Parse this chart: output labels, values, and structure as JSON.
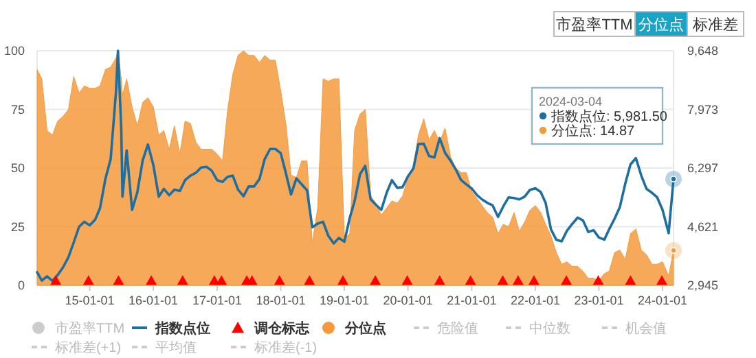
{
  "chart_data": {
    "type": "line",
    "annotations": [
      "市盈率TTM",
      "分位点",
      "标准差",
      "2024-03-04",
      "指数点位: 5,981.50",
      "分位点: 14.87"
    ],
    "x": [
      "2014-03-05",
      "2014-04",
      "2014-05",
      "2014-06",
      "2014-07",
      "2014-08",
      "2014-09",
      "2014-10",
      "2014-11",
      "2014-12",
      "2015-01",
      "2015-02",
      "2015-03",
      "2015-04",
      "2015-05",
      "2015-06",
      "2015-06-12",
      "2015-07",
      "2015-07-08",
      "2015-08",
      "2015-09",
      "2015-10",
      "2015-11",
      "2015-12",
      "2016-01",
      "2016-02",
      "2016-03",
      "2016-04",
      "2016-05",
      "2016-06",
      "2016-07",
      "2016-08",
      "2016-09",
      "2016-10",
      "2016-11",
      "2016-12",
      "2017-01",
      "2017-02",
      "2017-03",
      "2017-04",
      "2017-05",
      "2017-06",
      "2017-07",
      "2017-08",
      "2017-09",
      "2017-10",
      "2017-11",
      "2017-12",
      "2018-01",
      "2018-02",
      "2018-03",
      "2018-04",
      "2018-05",
      "2018-06",
      "2018-07",
      "2018-08",
      "2018-09",
      "2018-10",
      "2018-11",
      "2018-12",
      "2019-01",
      "2019-02",
      "2019-03",
      "2019-04",
      "2019-05",
      "2019-06",
      "2019-07",
      "2019-08",
      "2019-09",
      "2019-10",
      "2019-11",
      "2019-12",
      "2020-01",
      "2020-02",
      "2020-03",
      "2020-04",
      "2020-05",
      "2020-06",
      "2020-07",
      "2020-08",
      "2020-09",
      "2020-10",
      "2020-11",
      "2020-12",
      "2021-01",
      "2021-02",
      "2021-03",
      "2021-04",
      "2021-05",
      "2021-06",
      "2021-07",
      "2021-08",
      "2021-09",
      "2021-10",
      "2021-11",
      "2021-12",
      "2022-01",
      "2022-02",
      "2022-03",
      "2022-04",
      "2022-05",
      "2022-06",
      "2022-07",
      "2022-08",
      "2022-09",
      "2022-10",
      "2022-11",
      "2022-12",
      "2023-01",
      "2023-02",
      "2023-03",
      "2023-04",
      "2023-05",
      "2023-06",
      "2023-07",
      "2023-08",
      "2023-09",
      "2023-10",
      "2023-11",
      "2023-12",
      "2024-01",
      "2024-02-05",
      "2024-03-04"
    ],
    "series": [
      {
        "name": "市盈率TTM",
        "type": "scatter",
        "marker": "circle",
        "color": "#cccccc",
        "values": [
          null,
          null,
          null,
          null,
          null,
          null,
          null,
          null,
          null,
          null,
          null,
          null,
          null,
          null,
          null,
          null,
          null,
          null,
          null,
          null,
          null,
          null,
          null,
          null,
          null,
          null,
          null,
          null,
          null,
          null,
          null,
          null,
          null,
          null,
          null,
          null,
          null,
          null,
          null,
          null,
          null,
          null,
          null,
          null,
          null,
          null,
          null,
          null,
          null,
          null,
          null,
          null,
          null,
          null,
          null,
          null,
          null,
          null,
          null,
          null,
          null,
          null,
          null,
          null,
          null,
          null,
          null,
          null,
          null,
          null,
          null,
          null,
          null,
          null,
          null,
          null,
          null,
          null,
          null,
          null,
          null,
          null,
          null,
          null,
          null,
          null,
          null,
          null,
          null,
          null,
          null,
          null,
          null,
          null,
          null,
          null,
          null,
          null,
          null,
          null,
          null,
          null,
          null,
          null,
          null,
          null,
          null,
          null,
          null,
          null,
          null,
          null,
          null,
          null,
          null,
          null,
          null,
          null,
          null,
          null,
          null,
          null,
          null
        ]
      },
      {
        "name": "指数点位",
        "axis": "y2",
        "color": "#1f6ea0",
        "values": [
          3320,
          3080,
          3200,
          3070,
          3240,
          3460,
          3750,
          4170,
          4620,
          4760,
          4660,
          4820,
          5150,
          5990,
          6550,
          8500,
          9648,
          7400,
          5481,
          6800,
          5100,
          5600,
          6520,
          6970,
          6380,
          5480,
          5700,
          5520,
          5680,
          5640,
          5950,
          6080,
          6160,
          6310,
          6330,
          6220,
          5950,
          5900,
          6040,
          6080,
          5680,
          5490,
          5770,
          5770,
          5980,
          6550,
          6840,
          6840,
          6720,
          6120,
          5540,
          6000,
          5830,
          5660,
          4600,
          4710,
          4760,
          4360,
          4140,
          4300,
          4190,
          4870,
          5350,
          6120,
          6360,
          5400,
          5250,
          5100,
          5590,
          5950,
          5730,
          5750,
          6060,
          6280,
          6980,
          6990,
          6640,
          6600,
          7150,
          6730,
          6510,
          6260,
          5950,
          5830,
          5710,
          5520,
          5400,
          5300,
          5230,
          4900,
          5200,
          5460,
          5440,
          5400,
          5480,
          5670,
          5720,
          5610,
          5300,
          4540,
          4250,
          4200,
          4500,
          4700,
          4880,
          4800,
          4470,
          4520,
          4310,
          4250,
          4550,
          4850,
          5180,
          5850,
          6400,
          6580,
          6080,
          5700,
          5590,
          5460,
          5100,
          4435,
          5981.5
        ]
      },
      {
        "name": "调仓标志",
        "type": "scatter",
        "marker": "triangle",
        "color": "#ff0000",
        "x": [
          "2014-06-20",
          "2014-12-25",
          "2015-06-15",
          "2015-12-20",
          "2016-06-17",
          "2016-12-16",
          "2017-01-26",
          "2017-06-20",
          "2017-07-20",
          "2017-12-25",
          "2018-06-15",
          "2018-12-24",
          "2019-06-28",
          "2019-12-28",
          "2020-07-01",
          "2020-12-25",
          "2021-06-28",
          "2021-09-24",
          "2021-12-24",
          "2022-06-28",
          "2022-12-28",
          "2023-07-01",
          "2023-12-28"
        ],
        "values": [
          2,
          2,
          2,
          2,
          2,
          2,
          2,
          2,
          2,
          2,
          2,
          2,
          2,
          2,
          2,
          2,
          2,
          2,
          2,
          2,
          2,
          2,
          2
        ]
      },
      {
        "name": "分位点",
        "type": "area",
        "color": "#f49a3c",
        "values": [
          92,
          88,
          66,
          64,
          70,
          72,
          75,
          89,
          82,
          85,
          84,
          84,
          85,
          92,
          93,
          97,
          100,
          88,
          81,
          88,
          76,
          68,
          78,
          80,
          76,
          64,
          66,
          58,
          68,
          56,
          70,
          69,
          61,
          58,
          58,
          58,
          56,
          53,
          74,
          90,
          98,
          100,
          98,
          98,
          95,
          98,
          96,
          96,
          83,
          68,
          47,
          46,
          53,
          53,
          18,
          33,
          88,
          87,
          88,
          88,
          20,
          22,
          66,
          73,
          75,
          38,
          35,
          30,
          33,
          36,
          35,
          38,
          46,
          51,
          64,
          71,
          62,
          66,
          61,
          67,
          55,
          50,
          48,
          48,
          40,
          37,
          34,
          31,
          29,
          22,
          26,
          25,
          31,
          23,
          27,
          32,
          34,
          31,
          26,
          21,
          14,
          9,
          10,
          8,
          8,
          6,
          3,
          3,
          2,
          5,
          6,
          14,
          15,
          11,
          22,
          24,
          15,
          13,
          9,
          9,
          10,
          4,
          14.87
        ]
      },
      {
        "name": "危险值",
        "type": "line",
        "line_style": "dashed",
        "color": "#cccccc",
        "values": [
          null,
          null,
          null,
          null,
          null,
          null,
          null,
          null,
          null,
          null,
          null,
          null,
          null,
          null,
          null,
          null,
          null,
          null,
          null,
          null,
          null,
          null,
          null,
          null,
          null,
          null,
          null,
          null,
          null,
          null,
          null,
          null,
          null,
          null,
          null,
          null,
          null,
          null,
          null,
          null,
          null,
          null,
          null,
          null,
          null,
          null,
          null,
          null,
          null,
          null,
          null,
          null,
          null,
          null,
          null,
          null,
          null,
          null,
          null,
          null,
          null,
          null,
          null,
          null,
          null,
          null,
          null,
          null,
          null,
          null,
          null,
          null,
          null,
          null,
          null,
          null,
          null,
          null,
          null,
          null,
          null,
          null,
          null,
          null,
          null,
          null,
          null,
          null,
          null,
          null,
          null,
          null,
          null,
          null,
          null,
          null,
          null,
          null,
          null,
          null,
          null,
          null,
          null,
          null,
          null,
          null,
          null,
          null,
          null,
          null,
          null,
          null,
          null,
          null,
          null,
          null,
          null,
          null,
          null,
          null,
          null,
          null,
          null
        ]
      },
      {
        "name": "中位数",
        "type": "line",
        "line_style": "dashed",
        "color": "#cccccc",
        "values": [
          null,
          null,
          null,
          null,
          null,
          null,
          null,
          null,
          null,
          null,
          null,
          null,
          null,
          null,
          null,
          null,
          null,
          null,
          null,
          null,
          null,
          null,
          null,
          null,
          null,
          null,
          null,
          null,
          null,
          null,
          null,
          null,
          null,
          null,
          null,
          null,
          null,
          null,
          null,
          null,
          null,
          null,
          null,
          null,
          null,
          null,
          null,
          null,
          null,
          null,
          null,
          null,
          null,
          null,
          null,
          null,
          null,
          null,
          null,
          null,
          null,
          null,
          null,
          null,
          null,
          null,
          null,
          null,
          null,
          null,
          null,
          null,
          null,
          null,
          null,
          null,
          null,
          null,
          null,
          null,
          null,
          null,
          null,
          null,
          null,
          null,
          null,
          null,
          null,
          null,
          null,
          null,
          null,
          null,
          null,
          null,
          null,
          null,
          null,
          null,
          null,
          null,
          null,
          null,
          null,
          null,
          null,
          null,
          null,
          null,
          null,
          null,
          null,
          null,
          null,
          null,
          null,
          null,
          null,
          null,
          null,
          null,
          null
        ]
      },
      {
        "name": "机会值",
        "type": "line",
        "line_style": "dashed",
        "color": "#cccccc",
        "values": [
          null,
          null,
          null,
          null,
          null,
          null,
          null,
          null,
          null,
          null,
          null,
          null,
          null,
          null,
          null,
          null,
          null,
          null,
          null,
          null,
          null,
          null,
          null,
          null,
          null,
          null,
          null,
          null,
          null,
          null,
          null,
          null,
          null,
          null,
          null,
          null,
          null,
          null,
          null,
          null,
          null,
          null,
          null,
          null,
          null,
          null,
          null,
          null,
          null,
          null,
          null,
          null,
          null,
          null,
          null,
          null,
          null,
          null,
          null,
          null,
          null,
          null,
          null,
          null,
          null,
          null,
          null,
          null,
          null,
          null,
          null,
          null,
          null,
          null,
          null,
          null,
          null,
          null,
          null,
          null,
          null,
          null,
          null,
          null,
          null,
          null,
          null,
          null,
          null,
          null,
          null,
          null,
          null,
          null,
          null,
          null,
          null,
          null,
          null,
          null,
          null,
          null,
          null,
          null,
          null,
          null,
          null,
          null,
          null,
          null,
          null,
          null,
          null,
          null,
          null,
          null,
          null,
          null,
          null,
          null,
          null,
          null,
          null
        ]
      },
      {
        "name": "标准差(+1)",
        "type": "line",
        "line_style": "dashed",
        "color": "#cccccc",
        "values": [
          null,
          null,
          null,
          null,
          null,
          null,
          null,
          null,
          null,
          null,
          null,
          null,
          null,
          null,
          null,
          null,
          null,
          null,
          null,
          null,
          null,
          null,
          null,
          null,
          null,
          null,
          null,
          null,
          null,
          null,
          null,
          null,
          null,
          null,
          null,
          null,
          null,
          null,
          null,
          null,
          null,
          null,
          null,
          null,
          null,
          null,
          null,
          null,
          null,
          null,
          null,
          null,
          null,
          null,
          null,
          null,
          null,
          null,
          null,
          null,
          null,
          null,
          null,
          null,
          null,
          null,
          null,
          null,
          null,
          null,
          null,
          null,
          null,
          null,
          null,
          null,
          null,
          null,
          null,
          null,
          null,
          null,
          null,
          null,
          null,
          null,
          null,
          null,
          null,
          null,
          null,
          null,
          null,
          null,
          null,
          null,
          null,
          null,
          null,
          null,
          null,
          null,
          null,
          null,
          null,
          null,
          null,
          null,
          null,
          null,
          null,
          null,
          null,
          null,
          null,
          null,
          null,
          null,
          null,
          null,
          null,
          null,
          null
        ]
      },
      {
        "name": "平均值",
        "type": "line",
        "line_style": "dashed",
        "color": "#cccccc",
        "values": [
          null,
          null,
          null,
          null,
          null,
          null,
          null,
          null,
          null,
          null,
          null,
          null,
          null,
          null,
          null,
          null,
          null,
          null,
          null,
          null,
          null,
          null,
          null,
          null,
          null,
          null,
          null,
          null,
          null,
          null,
          null,
          null,
          null,
          null,
          null,
          null,
          null,
          null,
          null,
          null,
          null,
          null,
          null,
          null,
          null,
          null,
          null,
          null,
          null,
          null,
          null,
          null,
          null,
          null,
          null,
          null,
          null,
          null,
          null,
          null,
          null,
          null,
          null,
          null,
          null,
          null,
          null,
          null,
          null,
          null,
          null,
          null,
          null,
          null,
          null,
          null,
          null,
          null,
          null,
          null,
          null,
          null,
          null,
          null,
          null,
          null,
          null,
          null,
          null,
          null,
          null,
          null,
          null,
          null,
          null,
          null,
          null,
          null,
          null,
          null,
          null,
          null,
          null,
          null,
          null,
          null,
          null,
          null,
          null,
          null,
          null,
          null,
          null,
          null,
          null,
          null,
          null,
          null,
          null,
          null,
          null,
          null,
          null
        ]
      },
      {
        "name": "标准差(-1)",
        "type": "line",
        "line_style": "dashed",
        "color": "#cccccc",
        "values": [
          null,
          null,
          null,
          null,
          null,
          null,
          null,
          null,
          null,
          null,
          null,
          null,
          null,
          null,
          null,
          null,
          null,
          null,
          null,
          null,
          null,
          null,
          null,
          null,
          null,
          null,
          null,
          null,
          null,
          null,
          null,
          null,
          null,
          null,
          null,
          null,
          null,
          null,
          null,
          null,
          null,
          null,
          null,
          null,
          null,
          null,
          null,
          null,
          null,
          null,
          null,
          null,
          null,
          null,
          null,
          null,
          null,
          null,
          null,
          null,
          null,
          null,
          null,
          null,
          null,
          null,
          null,
          null,
          null,
          null,
          null,
          null,
          null,
          null,
          null,
          null,
          null,
          null,
          null,
          null,
          null,
          null,
          null,
          null,
          null,
          null,
          null,
          null,
          null,
          null,
          null,
          null,
          null,
          null,
          null,
          null,
          null,
          null,
          null,
          null,
          null,
          null,
          null,
          null,
          null,
          null,
          null,
          null,
          null,
          null,
          null,
          null,
          null,
          null,
          null,
          null,
          null,
          null,
          null,
          null,
          null,
          null,
          null
        ]
      }
    ],
    "xlim": [
      "2014-03-05",
      "2024-03-04"
    ],
    "xticks": [
      {
        "value": "2015-01-01",
        "label": "15-01-01"
      },
      {
        "value": "2016-01-01",
        "label": "16-01-01"
      },
      {
        "value": "2017-01-01",
        "label": "17-01-01"
      },
      {
        "value": "2018-01-01",
        "label": "18-01-01"
      },
      {
        "value": "2019-01-01",
        "label": "19-01-01"
      },
      {
        "value": "2020-01-01",
        "label": "20-01-01"
      },
      {
        "value": "2021-01-01",
        "label": "21-01-01"
      },
      {
        "value": "2022-01-01",
        "label": "22-01-01"
      },
      {
        "value": "2023-01-01",
        "label": "23-01-01"
      },
      {
        "value": "2024-01-01",
        "label": "24-01-01"
      }
    ],
    "ylim": [
      0,
      100
    ],
    "yticks": [
      0,
      25,
      50,
      75,
      100
    ],
    "y2lim": [
      2945,
      9648
    ],
    "y2ticks": [
      {
        "value": 2945,
        "label": "2,945"
      },
      {
        "value": 4621,
        "label": "4,621"
      },
      {
        "value": 6297,
        "label": "6,297"
      },
      {
        "value": 7973,
        "label": "7,973"
      },
      {
        "value": 9648,
        "label": "9,648"
      }
    ],
    "grid": "y",
    "legend": "bottom"
  }
}
